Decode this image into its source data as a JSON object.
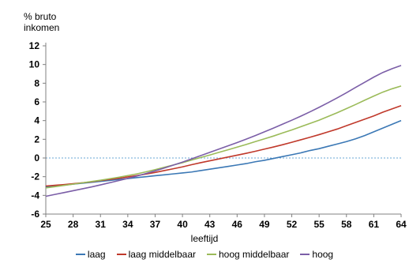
{
  "chart_data": {
    "type": "line",
    "ylabel": "% bruto\ninkomen",
    "xlabel": "leeftijd",
    "x": [
      25,
      26,
      27,
      28,
      29,
      30,
      31,
      32,
      33,
      34,
      35,
      36,
      37,
      38,
      39,
      40,
      41,
      42,
      43,
      44,
      45,
      46,
      47,
      48,
      49,
      50,
      51,
      52,
      53,
      54,
      55,
      56,
      57,
      58,
      59,
      60,
      61,
      62,
      63,
      64
    ],
    "xticks": [
      25,
      28,
      31,
      34,
      37,
      40,
      43,
      46,
      49,
      52,
      55,
      58,
      61,
      64
    ],
    "yticks": [
      -6,
      -4,
      -2,
      0,
      2,
      4,
      6,
      8,
      10,
      12
    ],
    "xlim": [
      25,
      64
    ],
    "ylim": [
      -6,
      12
    ],
    "zero_line": true,
    "legend_position": "bottom",
    "series": [
      {
        "name": "laag",
        "color": "#3b78b5",
        "values": [
          -3.1,
          -3.0,
          -2.9,
          -2.8,
          -2.7,
          -2.6,
          -2.5,
          -2.4,
          -2.3,
          -2.2,
          -2.1,
          -2.0,
          -1.9,
          -1.8,
          -1.7,
          -1.6,
          -1.5,
          -1.35,
          -1.2,
          -1.05,
          -0.9,
          -0.75,
          -0.6,
          -0.4,
          -0.25,
          -0.05,
          0.15,
          0.35,
          0.55,
          0.8,
          1.0,
          1.25,
          1.5,
          1.75,
          2.05,
          2.4,
          2.8,
          3.2,
          3.6,
          4.0
        ]
      },
      {
        "name": "laag middelbaar",
        "color": "#c0392b",
        "values": [
          -3.0,
          -2.92,
          -2.84,
          -2.75,
          -2.65,
          -2.55,
          -2.42,
          -2.3,
          -2.17,
          -2.02,
          -1.88,
          -1.72,
          -1.55,
          -1.35,
          -1.15,
          -0.95,
          -0.72,
          -0.5,
          -0.3,
          -0.1,
          0.1,
          0.3,
          0.5,
          0.72,
          0.95,
          1.18,
          1.42,
          1.68,
          1.95,
          2.22,
          2.5,
          2.8,
          3.1,
          3.45,
          3.8,
          4.15,
          4.5,
          4.9,
          5.25,
          5.6
        ]
      },
      {
        "name": "hoog middelbaar",
        "color": "#9bbb59",
        "values": [
          -3.2,
          -3.07,
          -2.93,
          -2.8,
          -2.66,
          -2.52,
          -2.38,
          -2.22,
          -2.06,
          -1.88,
          -1.7,
          -1.48,
          -1.25,
          -1.0,
          -0.75,
          -0.5,
          -0.22,
          0.05,
          0.32,
          0.6,
          0.88,
          1.16,
          1.45,
          1.75,
          2.05,
          2.35,
          2.68,
          3.0,
          3.35,
          3.7,
          4.05,
          4.45,
          4.85,
          5.28,
          5.72,
          6.18,
          6.62,
          7.05,
          7.4,
          7.7
        ]
      },
      {
        "name": "hoog",
        "color": "#7b5ea7",
        "values": [
          -4.1,
          -3.9,
          -3.7,
          -3.5,
          -3.3,
          -3.1,
          -2.88,
          -2.65,
          -2.42,
          -2.18,
          -1.93,
          -1.66,
          -1.38,
          -1.08,
          -0.76,
          -0.44,
          -0.1,
          0.25,
          0.6,
          0.95,
          1.3,
          1.65,
          2.02,
          2.4,
          2.8,
          3.2,
          3.62,
          4.04,
          4.48,
          4.94,
          5.42,
          5.92,
          6.44,
          6.98,
          7.55,
          8.1,
          8.65,
          9.15,
          9.55,
          9.9
        ]
      }
    ]
  }
}
